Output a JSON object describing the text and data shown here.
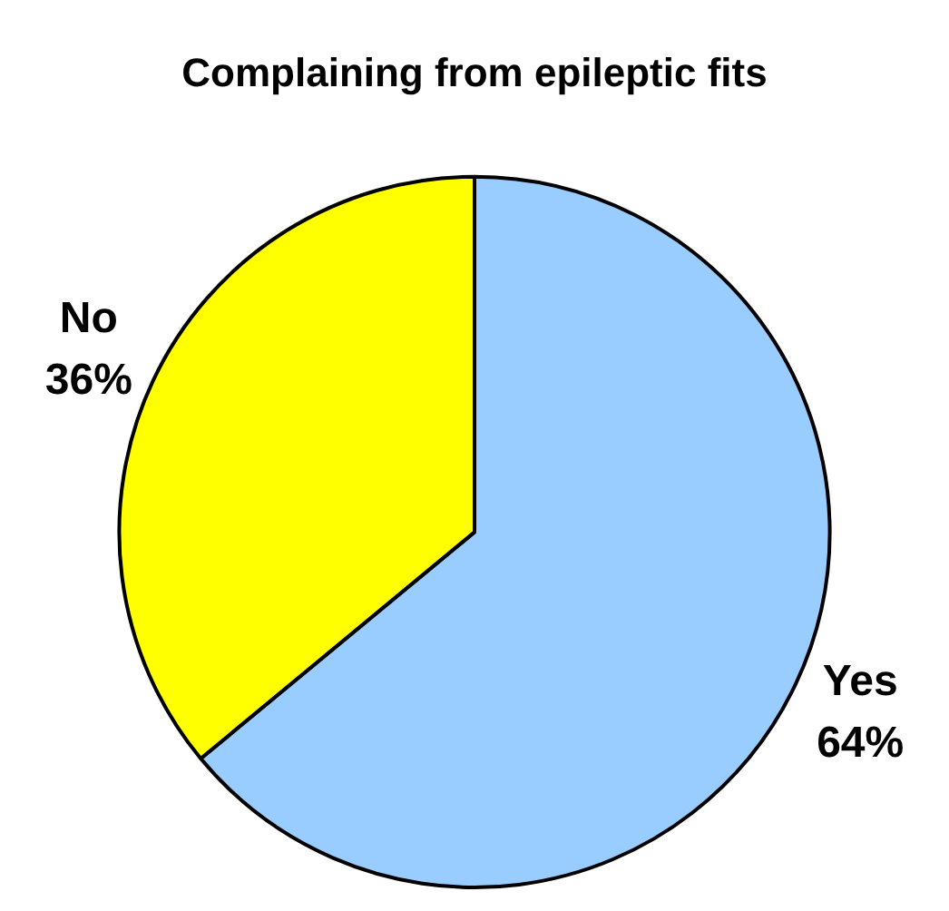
{
  "chart_data": {
    "type": "pie",
    "title": "Complaining from epileptic fits",
    "categories": [
      "Yes",
      "No"
    ],
    "values": [
      64,
      36
    ],
    "value_labels": [
      "64%",
      "36%"
    ],
    "colors": [
      "#99ccff",
      "#ffff00"
    ],
    "legend": false
  }
}
